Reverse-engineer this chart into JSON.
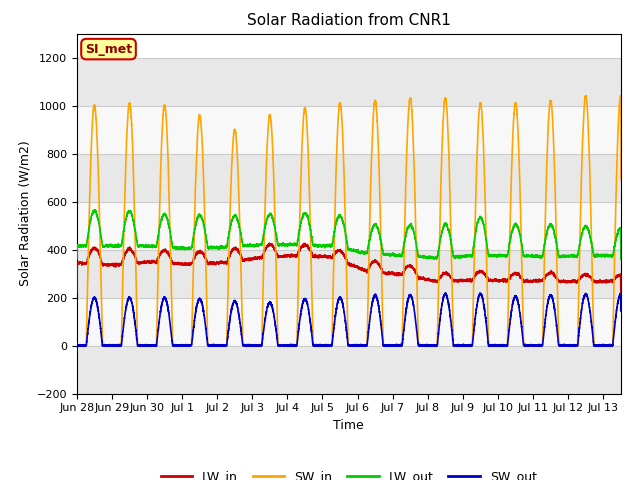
{
  "title": "Solar Radiation from CNR1",
  "xlabel": "Time",
  "ylabel": "Solar Radiation (W/m2)",
  "ylim": [
    -200,
    1300
  ],
  "yticks": [
    -200,
    0,
    200,
    400,
    600,
    800,
    1000,
    1200
  ],
  "num_days": 15.5,
  "colors": {
    "LW_in": "#cc0000",
    "SW_in": "#ffa500",
    "LW_out": "#00cc00",
    "SW_out": "#0000cc"
  },
  "legend_label": "SI_met",
  "legend_box_facecolor": "#ffff99",
  "legend_box_edgecolor": "#cc0000",
  "fig_facecolor": "#ffffff",
  "plot_facecolor": "#ffffff",
  "band_colors": [
    "#e8e8e8",
    "#f8f8f8"
  ],
  "linewidth": 1.2,
  "tick_labels": [
    "Jun 28",
    "Jun 29",
    "Jun 30",
    "Jul 1",
    "Jul 2",
    "Jul 3",
    "Jul 4",
    "Jul 5",
    "Jul 6",
    "Jul 7",
    "Jul 8",
    "Jul 9",
    "Jul 10",
    "Jul 11",
    "Jul 12",
    "Jul 13"
  ],
  "grid_color": "#cccccc",
  "grid_linewidth": 0.8
}
